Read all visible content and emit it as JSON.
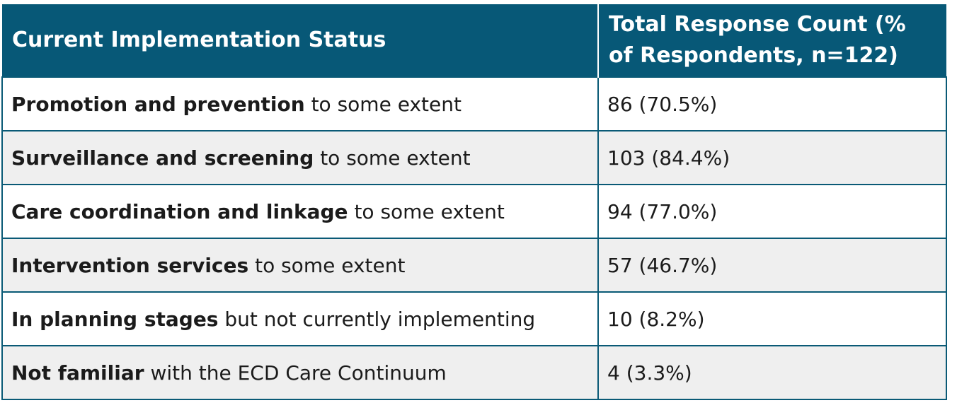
{
  "table": {
    "headers": [
      "Current Implementation Status",
      "Total Response Count  (% of Respondents, n=122)"
    ],
    "rows": [
      {
        "bold": "Promotion and prevention",
        "rest": " to some extent",
        "count": "86 (70.5%)"
      },
      {
        "bold": "Surveillance and screening",
        "rest": " to some extent",
        "count": "103 (84.4%)"
      },
      {
        "bold": "Care coordination and linkage",
        "rest": " to some extent",
        "count": "94 (77.0%)"
      },
      {
        "bold": "Intervention  services",
        "rest": " to some extent",
        "count": "57 (46.7%)"
      },
      {
        "bold": "In planning stages",
        "rest": " but not currently implementing",
        "count": "10 (8.2%)"
      },
      {
        "bold": "Not familiar",
        "rest": " with the ECD Care Continuum",
        "count": "4 (3.3%)"
      }
    ]
  },
  "colors": {
    "header_bg": "#075877",
    "border": "#0a5a76",
    "alt_row": "#efefef"
  }
}
